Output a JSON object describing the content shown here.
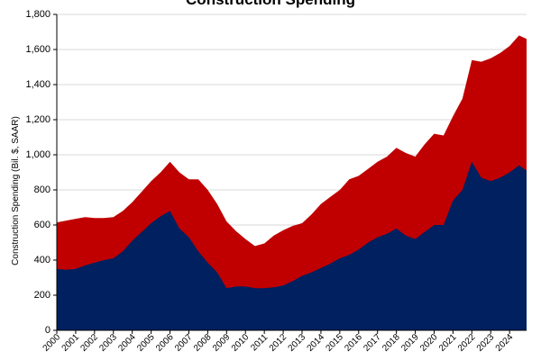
{
  "chart_data": {
    "type": "area",
    "title": "Construction Spending",
    "ylabel": "Construction Spending (Bil. $, SAAR)",
    "xlabel": "",
    "ylim": [
      0,
      1800
    ],
    "yticks": [
      0,
      200,
      400,
      600,
      800,
      1000,
      1200,
      1400,
      1600,
      1800
    ],
    "ytick_labels": [
      "0",
      "200",
      "400",
      "600",
      "800",
      "1,000",
      "1,200",
      "1,400",
      "1,600",
      "1,800"
    ],
    "xlim": [
      2000,
      2024.9
    ],
    "xticks": [
      "2000",
      "2001",
      "2002",
      "2003",
      "2004",
      "2005",
      "2006",
      "2007",
      "2008",
      "2009",
      "2010",
      "2011",
      "2012",
      "2013",
      "2014",
      "2015",
      "2016",
      "2017",
      "2018",
      "2019",
      "2020",
      "2021",
      "2022",
      "2023",
      "2024"
    ],
    "stacked": false,
    "grid": "horizontal",
    "x": [
      2000,
      2000.5,
      2001,
      2001.5,
      2002,
      2002.5,
      2003,
      2003.5,
      2004,
      2004.5,
      2005,
      2005.5,
      2006,
      2006.5,
      2007,
      2007.5,
      2008,
      2008.5,
      2009,
      2009.5,
      2010,
      2010.5,
      2011,
      2011.5,
      2012,
      2012.5,
      2013,
      2013.5,
      2014,
      2014.5,
      2015,
      2015.5,
      2016,
      2016.5,
      2017,
      2017.5,
      2018,
      2018.5,
      2019,
      2019.5,
      2020,
      2020.5,
      2021,
      2021.5,
      2022,
      2022.5,
      2023,
      2023.5,
      2024,
      2024.5,
      2024.9
    ],
    "series": [
      {
        "color": "#c00000",
        "values": [
          615,
          625,
          635,
          645,
          640,
          640,
          645,
          680,
          730,
          790,
          850,
          900,
          960,
          900,
          860,
          860,
          800,
          720,
          620,
          565,
          520,
          480,
          495,
          540,
          570,
          595,
          610,
          660,
          720,
          760,
          800,
          860,
          880,
          920,
          960,
          990,
          1040,
          1010,
          990,
          1060,
          1120,
          1110,
          1220,
          1320,
          1540,
          1530,
          1550,
          1580,
          1620,
          1680,
          1660
        ]
      },
      {
        "color": "#002060",
        "values": [
          350,
          345,
          350,
          370,
          385,
          400,
          410,
          450,
          510,
          560,
          610,
          650,
          680,
          580,
          530,
          450,
          385,
          330,
          240,
          250,
          250,
          240,
          240,
          245,
          255,
          280,
          310,
          330,
          355,
          380,
          410,
          430,
          460,
          500,
          530,
          550,
          580,
          540,
          520,
          560,
          600,
          600,
          740,
          800,
          960,
          870,
          850,
          870,
          900,
          940,
          910
        ]
      }
    ]
  }
}
